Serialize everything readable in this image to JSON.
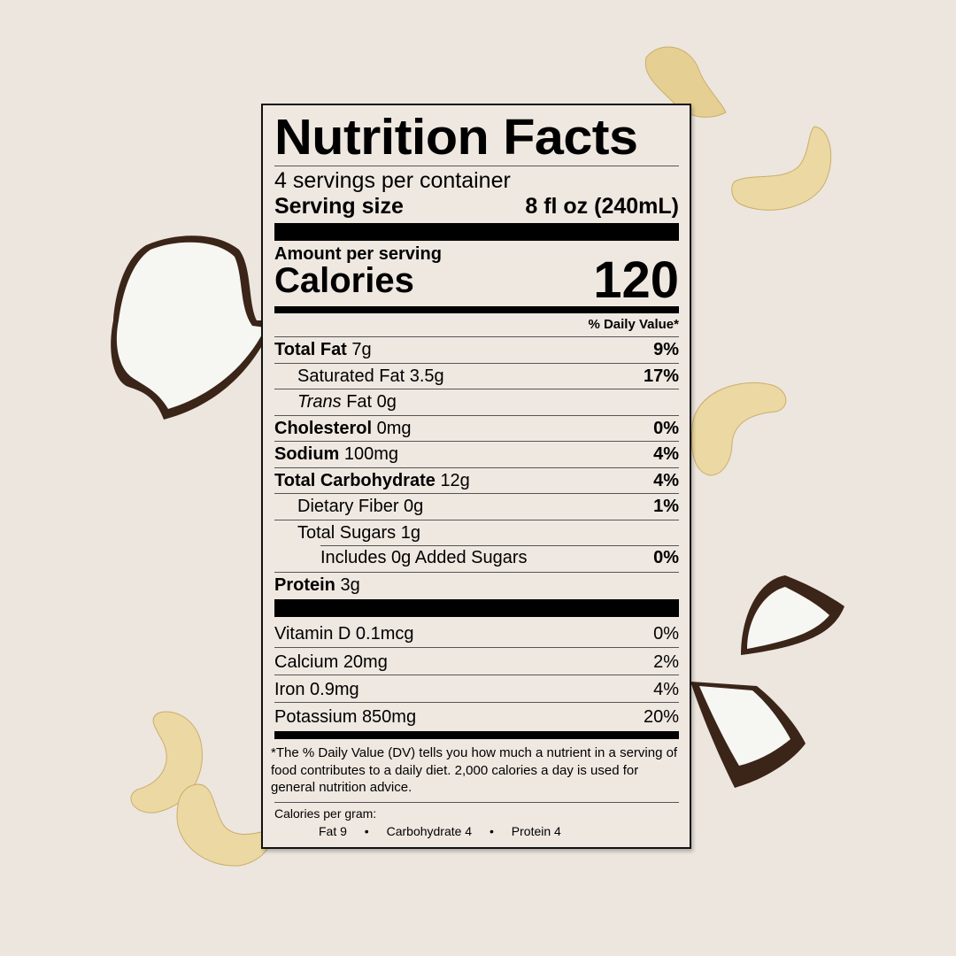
{
  "label": {
    "title": "Nutrition Facts",
    "servings_per_container": "4 servings per container",
    "serving_size_label": "Serving size",
    "serving_size_value": "8 fl oz (240mL)",
    "amount_per_serving": "Amount per serving",
    "calories_label": "Calories",
    "calories_value": "120",
    "daily_value_header": "% Daily Value*",
    "nutrients": [
      {
        "name": "Total Fat",
        "amount": "7g",
        "dv": "9%",
        "bold": true,
        "indent": 0
      },
      {
        "name": "Saturated Fat",
        "amount": "3.5g",
        "dv": "17%",
        "bold": false,
        "indent": 1
      },
      {
        "name": "Trans",
        "name_suffix": "Fat",
        "amount": "0g",
        "dv": "",
        "bold": false,
        "indent": 1
      },
      {
        "name": "Cholesterol",
        "amount": "0mg",
        "dv": "0%",
        "bold": true,
        "indent": 0
      },
      {
        "name": "Sodium",
        "amount": "100mg",
        "dv": "4%",
        "bold": true,
        "indent": 0
      },
      {
        "name": "Total Carbohydrate",
        "amount": "12g",
        "dv": "4%",
        "bold": true,
        "indent": 0
      },
      {
        "name": "Dietary Fiber",
        "amount": "0g",
        "dv": "1%",
        "bold": false,
        "indent": 1
      },
      {
        "name": "Total Sugars",
        "amount": "1g",
        "dv": "",
        "bold": false,
        "indent": 1
      },
      {
        "name": "Includes 0g Added Sugars",
        "amount": "",
        "dv": "0%",
        "bold": false,
        "indent": 2
      },
      {
        "name": "Protein",
        "amount": "3g",
        "dv": "",
        "bold": true,
        "indent": 0
      }
    ],
    "vitamins": [
      {
        "name": "Vitamin D",
        "amount": "0.1mcg",
        "dv": "0%"
      },
      {
        "name": "Calcium",
        "amount": "20mg",
        "dv": "2%"
      },
      {
        "name": "Iron",
        "amount": "0.9mg",
        "dv": "4%"
      },
      {
        "name": "Potassium",
        "amount": "850mg",
        "dv": "20%"
      }
    ],
    "footnote": "*The % Daily Value (DV) tells you how much a nutrient in a serving of food contributes to a daily diet. 2,000 calories a day is used for general nutrition advice.",
    "calories_per_gram_label": "Calories per gram:",
    "calories_per_gram": [
      "Fat 9",
      "Carbohydrate 4",
      "Protein 4"
    ],
    "separator": "•"
  },
  "decorations": [
    "cashew",
    "coconut-piece"
  ],
  "colors": {
    "background": "#ede6df",
    "label_bg": "#efe8e1",
    "ink": "#000000",
    "cashew": "#e9d49a",
    "coconut_shell": "#3b2418",
    "coconut_flesh": "#f7f7f5"
  }
}
